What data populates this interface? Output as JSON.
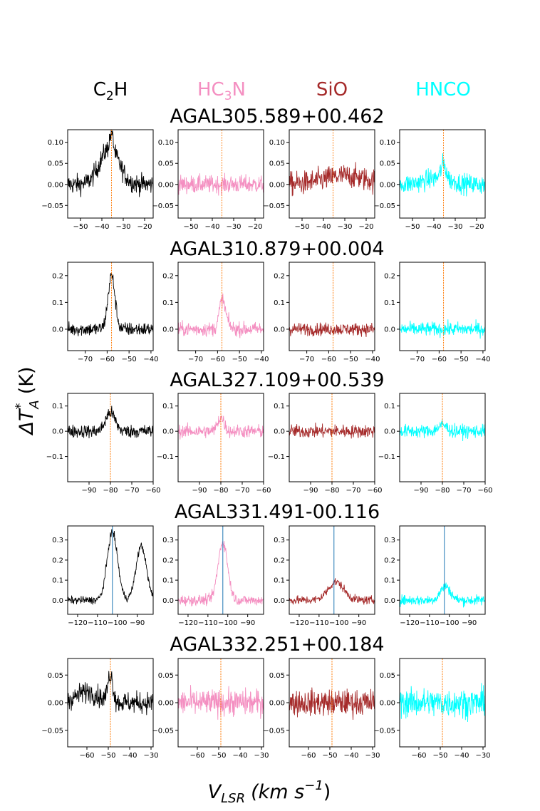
{
  "colors": {
    "C2H": "#000000",
    "HC3N": "#f48fc1",
    "SiO": "#a52a2a",
    "HNCO": "#00ffff",
    "vline_orange": "#ff7f0e",
    "vline_blue": "#1f77b4"
  },
  "labels": {
    "ylabel_main": "ΔT",
    "ylabel_sup": "*",
    "ylabel_sub": "A",
    "ylabel_unit": "(K)",
    "xlabel_main": "V",
    "xlabel_sub": "LSR",
    "xlabel_unit": "(km s",
    "xlabel_exp": "−1",
    "xlabel_close": ")"
  },
  "chart_data": {
    "type": "line",
    "molecules": [
      {
        "key": "C2H",
        "base": "C",
        "sub": "2",
        "rest": "H"
      },
      {
        "key": "HC3N",
        "base": "HC",
        "sub": "3",
        "rest": "N"
      },
      {
        "key": "SiO",
        "base": "SiO",
        "sub": "",
        "rest": ""
      },
      {
        "key": "HNCO",
        "base": "HNCO",
        "sub": "",
        "rest": ""
      }
    ],
    "sources": [
      {
        "name": "AGAL305.589+00.462",
        "xlim": [
          -56,
          -16
        ],
        "ylim": [
          -0.08,
          0.13
        ],
        "xticks": [
          -50,
          -40,
          -30,
          -20
        ],
        "yticks": [
          0.1,
          0.05,
          0.0,
          -0.05
        ],
        "ytick_labels": [
          "0.10",
          "0.05",
          "0.00",
          "−0.05"
        ],
        "vlsr": -35.5,
        "vline": "vline_orange",
        "noise": [
          0.02,
          0.018,
          0.024,
          0.02
        ],
        "lines": [
          {
            "mol": "C2H",
            "center": -36.5,
            "amp": 0.085,
            "width": 4.5
          },
          {
            "mol": "C2H",
            "center": -35.5,
            "amp": 0.04,
            "width": 0.8
          },
          {
            "mol": "SiO",
            "center": -30,
            "amp": 0.02,
            "width": 10
          },
          {
            "mol": "HNCO",
            "center": -35.5,
            "amp": 0.035,
            "width": 1.2
          },
          {
            "mol": "HNCO",
            "center": -38,
            "amp": 0.015,
            "width": 6
          }
        ]
      },
      {
        "name": "AGAL310.879+00.004",
        "xlim": [
          -78,
          -39
        ],
        "ylim": [
          -0.08,
          0.25
        ],
        "xticks": [
          -70,
          -60,
          -50,
          -40
        ],
        "yticks": [
          0.2,
          0.1,
          0.0
        ],
        "ytick_labels": [
          "0.2",
          "0.1",
          "0.0"
        ],
        "vlsr": -58,
        "vline": "vline_orange",
        "noise": [
          0.022,
          0.022,
          0.02,
          0.022
        ],
        "lines": [
          {
            "mol": "C2H",
            "center": -58,
            "amp": 0.2,
            "width": 1.6
          },
          {
            "mol": "HC3N",
            "center": -58,
            "amp": 0.1,
            "width": 1.3
          },
          {
            "mol": "HC3N",
            "center": -56,
            "amp": 0.025,
            "width": 1.5
          }
        ]
      },
      {
        "name": "AGAL327.109+00.539",
        "xlim": [
          -100,
          -60
        ],
        "ylim": [
          -0.2,
          0.15
        ],
        "xticks": [
          -90,
          -80,
          -70,
          -60
        ],
        "yticks": [
          0.1,
          0.0,
          -0.1
        ],
        "ytick_labels": [
          "0.1",
          "0.0",
          "−0.1"
        ],
        "vlsr": -80,
        "vline": "vline_orange",
        "noise": [
          0.022,
          0.022,
          0.022,
          0.022
        ],
        "lines": [
          {
            "mol": "C2H",
            "center": -80,
            "amp": 0.075,
            "width": 2.2
          },
          {
            "mol": "HC3N",
            "center": -80,
            "amp": 0.055,
            "width": 1.5
          },
          {
            "mol": "HNCO",
            "center": -80,
            "amp": 0.025,
            "width": 2
          }
        ]
      },
      {
        "name": "AGAL331.491-00.116",
        "xlim": [
          -125,
          -82
        ],
        "ylim": [
          -0.07,
          0.37
        ],
        "xticks": [
          -120,
          -110,
          -100,
          -90
        ],
        "yticks": [
          0.3,
          0.2,
          0.1,
          0.0
        ],
        "ytick_labels": [
          "0.3",
          "0.2",
          "0.1",
          "0.0"
        ],
        "vlsr": -102.5,
        "vline": "vline_blue",
        "noise": [
          0.016,
          0.022,
          0.018,
          0.022
        ],
        "lines": [
          {
            "mol": "C2H",
            "center": -102.5,
            "amp": 0.34,
            "width": 2.6
          },
          {
            "mol": "C2H",
            "center": -88,
            "amp": 0.27,
            "width": 2.6
          },
          {
            "mol": "HC3N",
            "center": -102.5,
            "amp": 0.29,
            "width": 2.4
          },
          {
            "mol": "SiO",
            "center": -101.5,
            "amp": 0.09,
            "width": 4
          },
          {
            "mol": "HNCO",
            "center": -102,
            "amp": 0.07,
            "width": 2.5
          }
        ]
      },
      {
        "name": "AGAL332.251+00.184",
        "xlim": [
          -69,
          -29
        ],
        "ylim": [
          -0.08,
          0.08
        ],
        "xticks": [
          -60,
          -50,
          -40,
          -30
        ],
        "yticks": [
          0.05,
          0.0,
          -0.05
        ],
        "ytick_labels": [
          "0.05",
          "0.00",
          "−0.05"
        ],
        "vlsr": -49,
        "vline": "vline_orange",
        "noise": [
          0.016,
          0.02,
          0.02,
          0.022
        ],
        "lines": [
          {
            "mol": "C2H",
            "center": -49,
            "amp": 0.05,
            "width": 1.2
          },
          {
            "mol": "C2H",
            "center": -60,
            "amp": 0.02,
            "width": 5
          }
        ]
      }
    ]
  }
}
